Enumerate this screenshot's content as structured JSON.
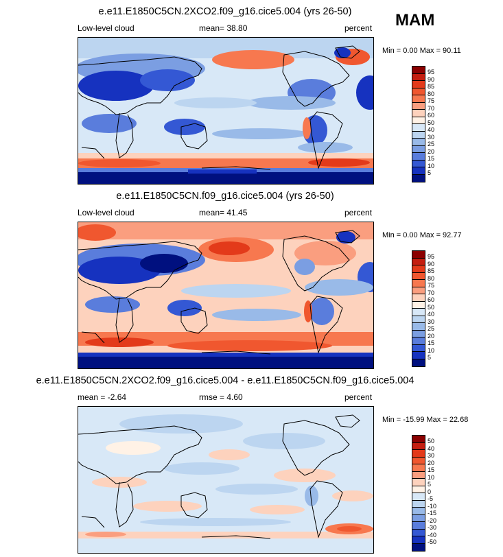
{
  "season_label": "MAM",
  "chart_data": [
    {
      "type": "heatmap",
      "title": "e.e11.E1850C5CN.2XCO2.f09_g16.cice5.004 (yrs 26-50)",
      "variable": "Low-level cloud",
      "mean_text": "mean=  38.80",
      "units": "percent",
      "minmax_text": "Min =   0.00 Max =  90.11",
      "min": 0.0,
      "max": 90.11,
      "levels": [
        5,
        10,
        15,
        20,
        25,
        30,
        40,
        50,
        60,
        70,
        75,
        80,
        85,
        90,
        95
      ],
      "level_labels": [
        "95",
        "90",
        "85",
        "80",
        "75",
        "70",
        "60",
        "50",
        "40",
        "30",
        "25",
        "20",
        "15",
        "10",
        "5"
      ],
      "colors": [
        "#8b0000",
        "#c41e10",
        "#e33a1a",
        "#f0572f",
        "#f7784f",
        "#fa9e7f",
        "#fdd2bd",
        "#fff2e6",
        "#d8e8f7",
        "#bcd5f0",
        "#99bae8",
        "#7b9ee2",
        "#5a7ddc",
        "#3458d4",
        "#1632bf",
        "#00107f"
      ]
    },
    {
      "type": "heatmap",
      "title": "e.e11.E1850C5CN.f09_g16.cice5.004 (yrs 26-50)",
      "variable": "Low-level cloud",
      "mean_text": "mean=  41.45",
      "units": "percent",
      "minmax_text": "Min =   0.00 Max =  92.77",
      "min": 0.0,
      "max": 92.77,
      "levels": [
        5,
        10,
        15,
        20,
        25,
        30,
        40,
        50,
        60,
        70,
        75,
        80,
        85,
        90,
        95
      ],
      "level_labels": [
        "95",
        "90",
        "85",
        "80",
        "75",
        "70",
        "60",
        "50",
        "40",
        "30",
        "25",
        "20",
        "15",
        "10",
        "5"
      ],
      "colors": [
        "#8b0000",
        "#c41e10",
        "#e33a1a",
        "#f0572f",
        "#f7784f",
        "#fa9e7f",
        "#fdd2bd",
        "#fff2e6",
        "#d8e8f7",
        "#bcd5f0",
        "#99bae8",
        "#7b9ee2",
        "#5a7ddc",
        "#3458d4",
        "#1632bf",
        "#00107f"
      ]
    },
    {
      "type": "heatmap",
      "title": "e.e11.E1850C5CN.2XCO2.f09_g16.cice5.004 - e.e11.E1850C5CN.f09_g16.cice5.004",
      "mean_text": "mean =  -2.64",
      "rmse_text": "rmse =   4.60",
      "units": "percent",
      "minmax_text": "Min = -15.99 Max =  22.68",
      "min": -15.99,
      "max": 22.68,
      "mean": -2.64,
      "rmse": 4.6,
      "levels": [
        -50,
        -40,
        -30,
        -20,
        -15,
        -10,
        -5,
        0,
        5,
        10,
        15,
        20,
        30,
        40,
        50
      ],
      "level_labels": [
        "50",
        "40",
        "30",
        "20",
        "15",
        "10",
        "5",
        "0",
        "-5",
        "-10",
        "-15",
        "-20",
        "-30",
        "-40",
        "-50"
      ],
      "colors": [
        "#8b0000",
        "#c41e10",
        "#e33a1a",
        "#f0572f",
        "#f7784f",
        "#fa9e7f",
        "#fdd2bd",
        "#fff2e6",
        "#d8e8f7",
        "#bcd5f0",
        "#99bae8",
        "#7b9ee2",
        "#5a7ddc",
        "#3458d4",
        "#1632bf",
        "#00107f"
      ]
    }
  ]
}
